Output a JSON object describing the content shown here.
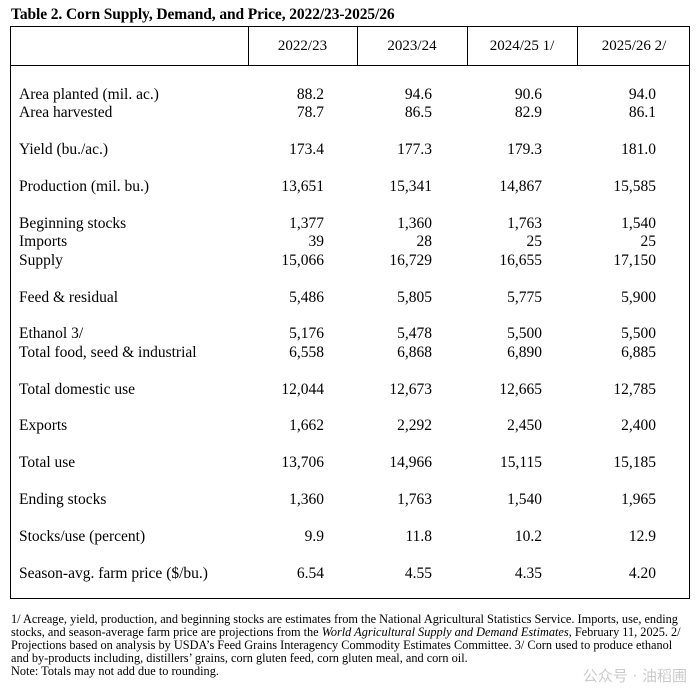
{
  "title": "Table 2.  Corn Supply, Demand, and Price, 2022/23-2025/26",
  "columns": [
    "2022/23",
    "2023/24",
    "2024/25 1/",
    "2025/26 2/"
  ],
  "rows": [
    {
      "label": "Area planted (mil. ac.)",
      "values": [
        "88.2",
        "94.6",
        "90.6",
        "94.0"
      ]
    },
    {
      "label": "Area harvested",
      "values": [
        "78.7",
        "86.5",
        "82.9",
        "86.1"
      ]
    },
    {
      "label": "Yield (bu./ac.)",
      "values": [
        "173.4",
        "177.3",
        "179.3",
        "181.0"
      ]
    },
    {
      "label": "Production (mil. bu.)",
      "values": [
        "13,651",
        "15,341",
        "14,867",
        "15,585"
      ]
    },
    {
      "label": "Beginning stocks",
      "values": [
        "1,377",
        "1,360",
        "1,763",
        "1,540"
      ]
    },
    {
      "label": "Imports",
      "values": [
        "39",
        "28",
        "25",
        "25"
      ]
    },
    {
      "label": "Supply",
      "values": [
        "15,066",
        "16,729",
        "16,655",
        "17,150"
      ]
    },
    {
      "label": "Feed & residual",
      "values": [
        "5,486",
        "5,805",
        "5,775",
        "5,900"
      ]
    },
    {
      "label": "Ethanol 3/",
      "values": [
        "5,176",
        "5,478",
        "5,500",
        "5,500"
      ]
    },
    {
      "label": "Total food, seed & industrial",
      "values": [
        "6,558",
        "6,868",
        "6,890",
        "6,885"
      ]
    },
    {
      "label": "Total domestic use",
      "values": [
        "12,044",
        "12,673",
        "12,665",
        "12,785"
      ]
    },
    {
      "label": "Exports",
      "values": [
        "1,662",
        "2,292",
        "2,450",
        "2,400"
      ]
    },
    {
      "label": "Total use",
      "values": [
        "13,706",
        "14,966",
        "15,115",
        "15,185"
      ]
    },
    {
      "label": "Ending stocks",
      "values": [
        "1,360",
        "1,763",
        "1,540",
        "1,965"
      ]
    },
    {
      "label": "Stocks/use (percent)",
      "values": [
        "9.9",
        "11.8",
        "10.2",
        "12.9"
      ]
    },
    {
      "label": "Season-avg. farm price ($/bu.)",
      "values": [
        "6.54",
        "4.55",
        "4.35",
        "4.20"
      ]
    }
  ],
  "notes": {
    "n1_a": "1/ Acreage, yield, production, and beginning stocks are estimates from the National Agricultural Statistics Service.  Imports, use, ending stocks, and season-average farm price are projections from the ",
    "n1_italic": "World Agricultural Supply and Demand Estimates",
    "n1_b": ", February 11, 2025.  2/ Projections based on analysis by USDA’s Feed Grains Interagency Commodity Estimates Committee.  3/ Corn used to produce ethanol and by-products including, distillers’ grains, corn gluten feed, corn gluten meal, and corn oil.",
    "note": "Note:  Totals may not add due to rounding."
  },
  "watermark": "公众号 · 油稻圃"
}
